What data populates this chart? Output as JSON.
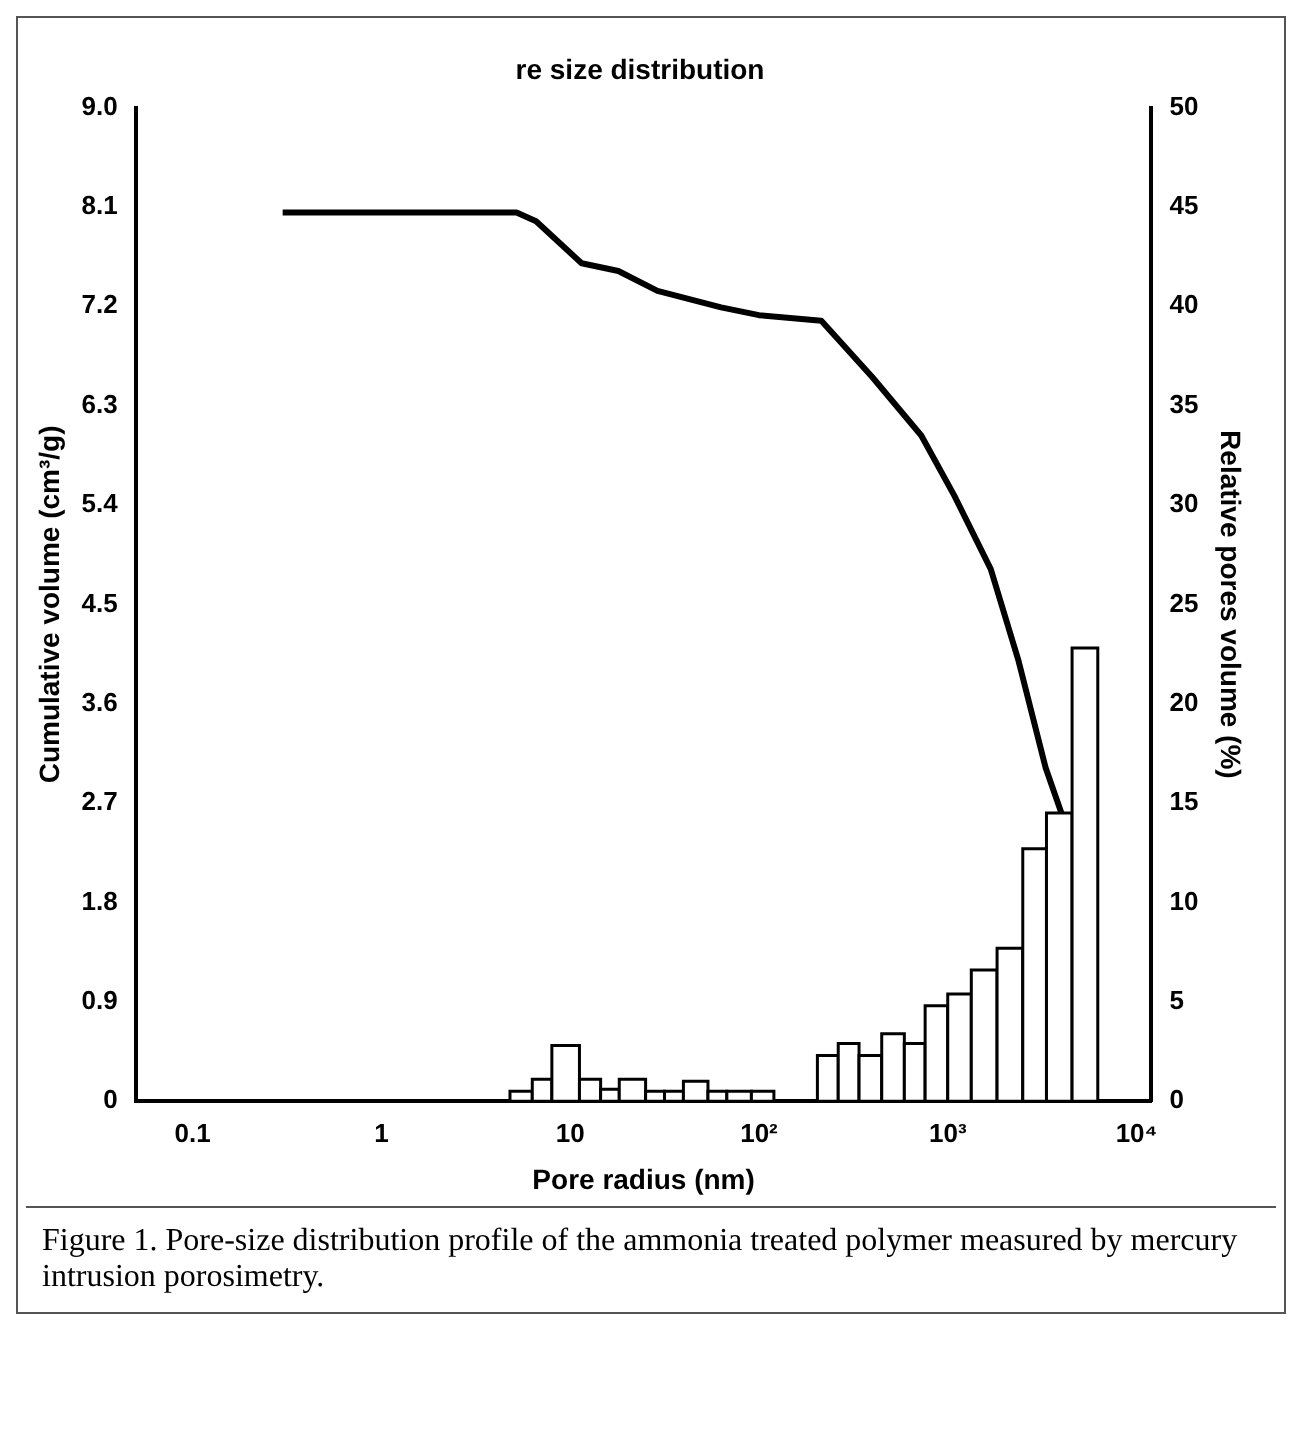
{
  "chart_data": {
    "type": "line",
    "title": "re size distribution",
    "xlabel": "Pore radius (nm)",
    "ylabel": "Cumulative volume (cm³/g)",
    "y2label": "Relative pores volume (%)",
    "log": "x",
    "grid": false,
    "legend": false,
    "marker": "none",
    "line_style": "solid",
    "xlim": [
      0.05,
      12000
    ],
    "xticks": [
      0.1,
      1,
      10,
      {
        "value": 100,
        "label": "10²"
      },
      {
        "value": 1000,
        "label": "10³"
      },
      {
        "value": 10000,
        "label": "10⁴"
      }
    ],
    "ylim": [
      0,
      9
    ],
    "yticks": [
      0,
      0.9,
      1.8,
      2.7,
      3.6,
      4.5,
      5.4,
      6.3,
      7.2,
      8.1,
      {
        "value": 9,
        "label": "9.0"
      }
    ],
    "y2lim": [
      0,
      50
    ],
    "y2ticks": [
      0,
      5,
      10,
      15,
      20,
      25,
      30,
      35,
      40,
      45,
      50
    ],
    "series": [
      {
        "color": "#000000",
        "x": [
          0.3,
          5.2,
          6.6,
          11.5,
          18,
          29,
          63,
          100,
          214,
          398,
          724,
          1080,
          1690,
          2370,
          3300,
          4000,
          6070
        ],
        "values": [
          8.05,
          8.05,
          7.97,
          7.59,
          7.52,
          7.34,
          7.19,
          7.12,
          7.07,
          6.56,
          6.03,
          5.49,
          4.82,
          3.99,
          3.02,
          2.61,
          0
        ]
      },
      {
        "type": "histogram",
        "axis": "y2",
        "color": "#ffffff",
        "bins": [
          4.8,
          6.3,
          8,
          11.2,
          14.5,
          18.2,
          25.1,
          31.6,
          39.8,
          53.7,
          67.6,
          91.2,
          120,
          204,
          263,
          339,
          447,
          589,
          759,
          1000,
          1333,
          1825,
          2497,
          3334,
          4556,
          6234
        ],
        "values": [
          0.5,
          1.1,
          2.8,
          1.1,
          0.6,
          1.1,
          0.5,
          0.5,
          1,
          0.5,
          0.5,
          0.5,
          0,
          2.3,
          2.9,
          2.3,
          3.4,
          2.9,
          4.8,
          5.4,
          6.6,
          7.7,
          12.7,
          14.5,
          22.8
        ]
      }
    ],
    "annotations": [
      "Figure 1. Pore-size distribution profile of the ammonia treated polymer measured by mercury intrusion porosimetry."
    ]
  }
}
